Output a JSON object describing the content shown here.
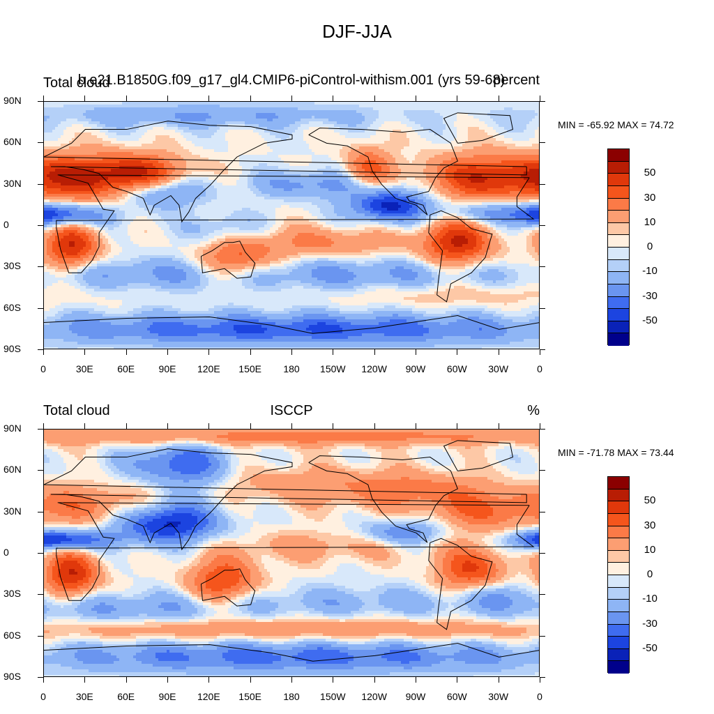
{
  "main_title": "DJF-JJA",
  "panels": [
    {
      "title_left": "Total cloud",
      "title_center": "b.e21.B1850G.f09_g17_gl4.CMIP6-piControl-withism.001 (yrs 59-68)",
      "title_right": "percent",
      "minmax": "MIN = -65.92 MAX =  74.72"
    },
    {
      "title_left": "Total cloud",
      "title_center": "ISCCP",
      "title_right": "%",
      "minmax": "MIN = -71.78 MAX =  73.44"
    }
  ],
  "colorbar": {
    "colors": [
      "#8b0000",
      "#b81d04",
      "#e0380b",
      "#f5551c",
      "#fb7a47",
      "#fc9e72",
      "#fdc8a6",
      "#fff0e0",
      "#d8e8fa",
      "#b4d0f8",
      "#8eb5f5",
      "#6a95f0",
      "#3f6cf0",
      "#1c44e0",
      "#0a22b8",
      "#00008b"
    ],
    "labels": [
      "50",
      "30",
      "10",
      "0",
      "-10",
      "-30",
      "-50"
    ]
  },
  "chart_data": [
    {
      "type": "heatmap",
      "title": "DJF-JJA",
      "subtitle": "b.e21.B1850G.f09_g17_gl4.CMIP6-piControl-withism.001 (yrs 59-68)",
      "variable": "Total cloud",
      "units": "percent",
      "min": -65.92,
      "max": 74.72,
      "x_range": [
        0,
        360
      ],
      "y_range": [
        -90,
        90
      ],
      "x_tick_labels": [
        "0",
        "30E",
        "60E",
        "90E",
        "120E",
        "150E",
        "180",
        "150W",
        "120W",
        "90W",
        "60W",
        "30W",
        "0"
      ],
      "y_tick_labels": [
        "90N",
        "60N",
        "30N",
        "0",
        "30S",
        "60S",
        "90S"
      ],
      "color_levels": [
        -60,
        -50,
        -40,
        -30,
        -20,
        -10,
        -5,
        0,
        5,
        10,
        20,
        30,
        40,
        50,
        60
      ]
    },
    {
      "type": "heatmap",
      "title": "DJF-JJA",
      "subtitle": "ISCCP",
      "variable": "Total cloud",
      "units": "%",
      "min": -71.78,
      "max": 73.44,
      "x_range": [
        0,
        360
      ],
      "y_range": [
        -90,
        90
      ],
      "x_tick_labels": [
        "0",
        "30E",
        "60E",
        "90E",
        "120E",
        "150E",
        "180",
        "150W",
        "120W",
        "90W",
        "60W",
        "30W",
        "0"
      ],
      "y_tick_labels": [
        "90N",
        "60N",
        "30N",
        "0",
        "30S",
        "60S",
        "90S"
      ],
      "color_levels": [
        -60,
        -50,
        -40,
        -30,
        -20,
        -10,
        -5,
        0,
        5,
        10,
        20,
        30,
        40,
        50,
        60
      ]
    }
  ]
}
